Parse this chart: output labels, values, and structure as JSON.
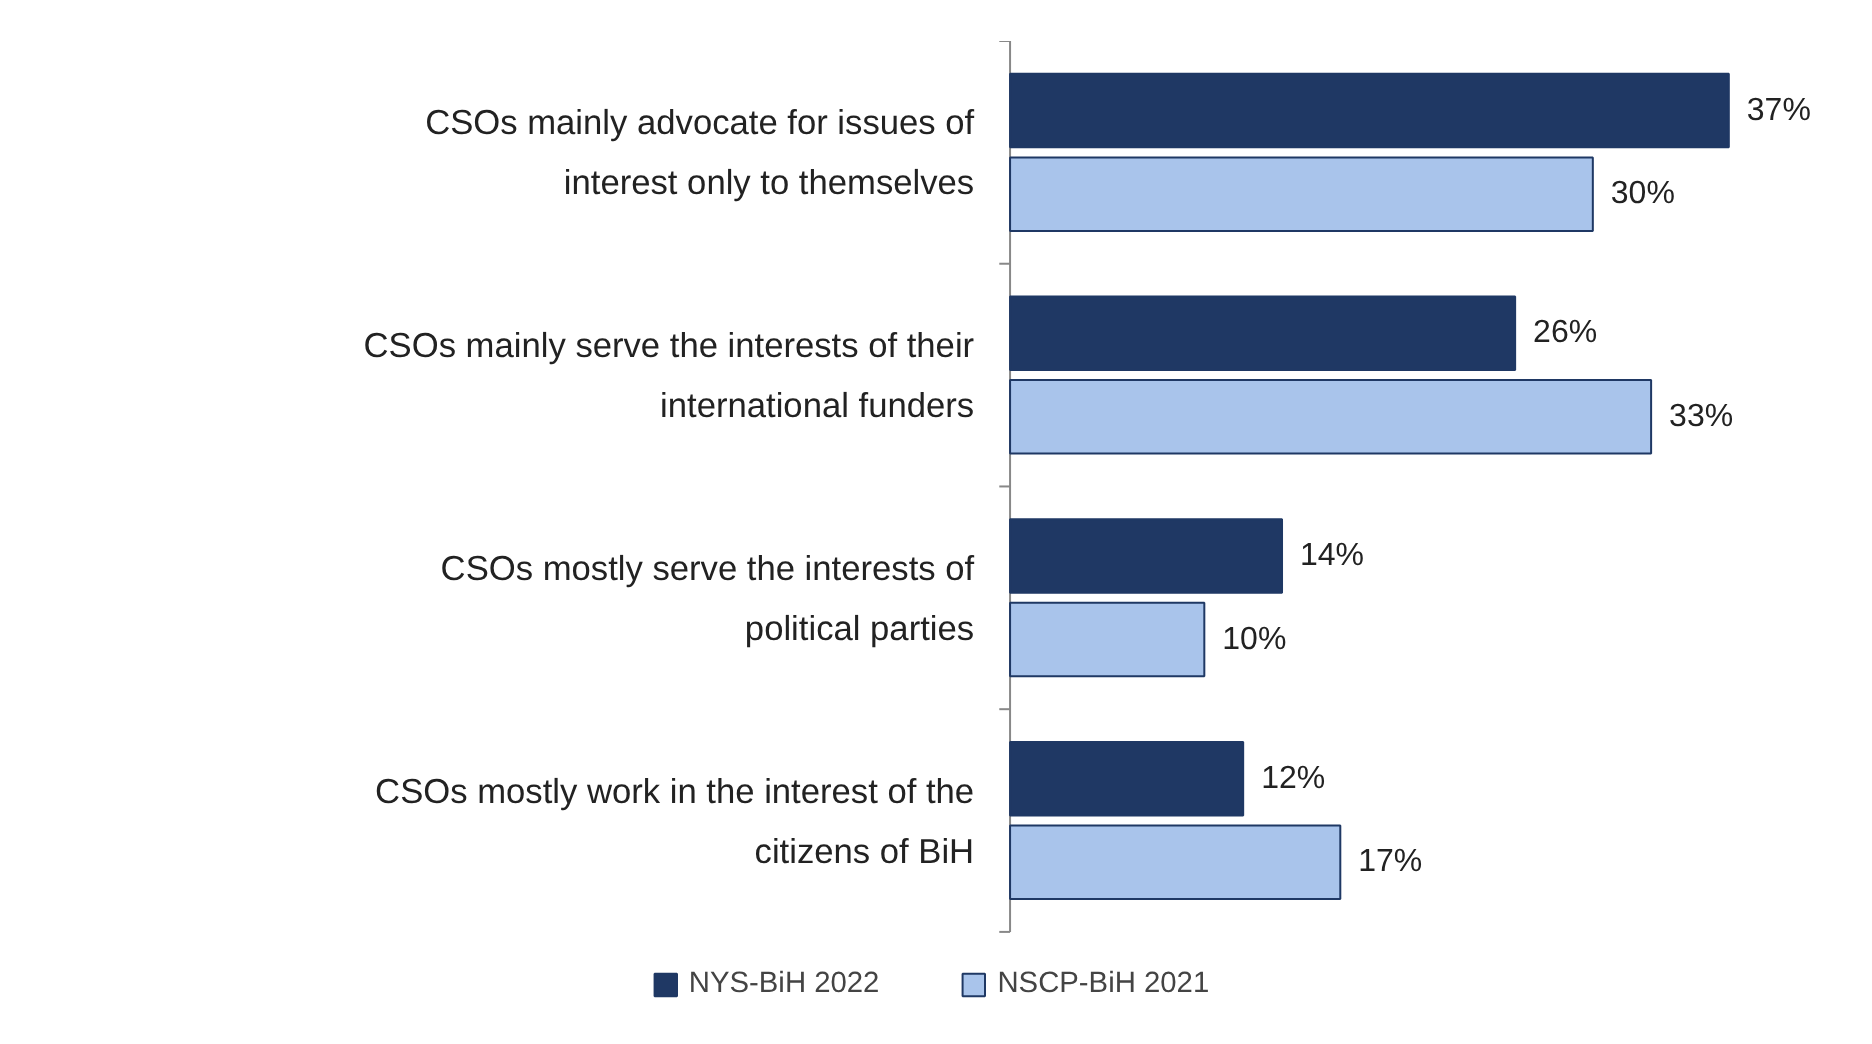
{
  "chart_data": {
    "type": "bar",
    "orientation": "horizontal",
    "categories": [
      "CSOs mainly advocate for issues of interest only to themselves",
      "CSOs mainly serve the interests of their international funders",
      "CSOs mostly serve the interests of political parties",
      "CSOs mostly work in the interest of the citizens of BiH"
    ],
    "series": [
      {
        "name": "NYS-BiH 2022",
        "color": "#1f3864",
        "values": [
          37,
          26,
          14,
          12
        ],
        "value_labels": [
          "37%",
          "26%",
          "14%",
          "12%"
        ]
      },
      {
        "name": "NSCP-BiH 2021",
        "color": "#a9c4eb",
        "values": [
          30,
          33,
          10,
          17
        ],
        "value_labels": [
          "30%",
          "33%",
          "10%",
          "17%"
        ]
      }
    ],
    "legend": "bottom"
  }
}
